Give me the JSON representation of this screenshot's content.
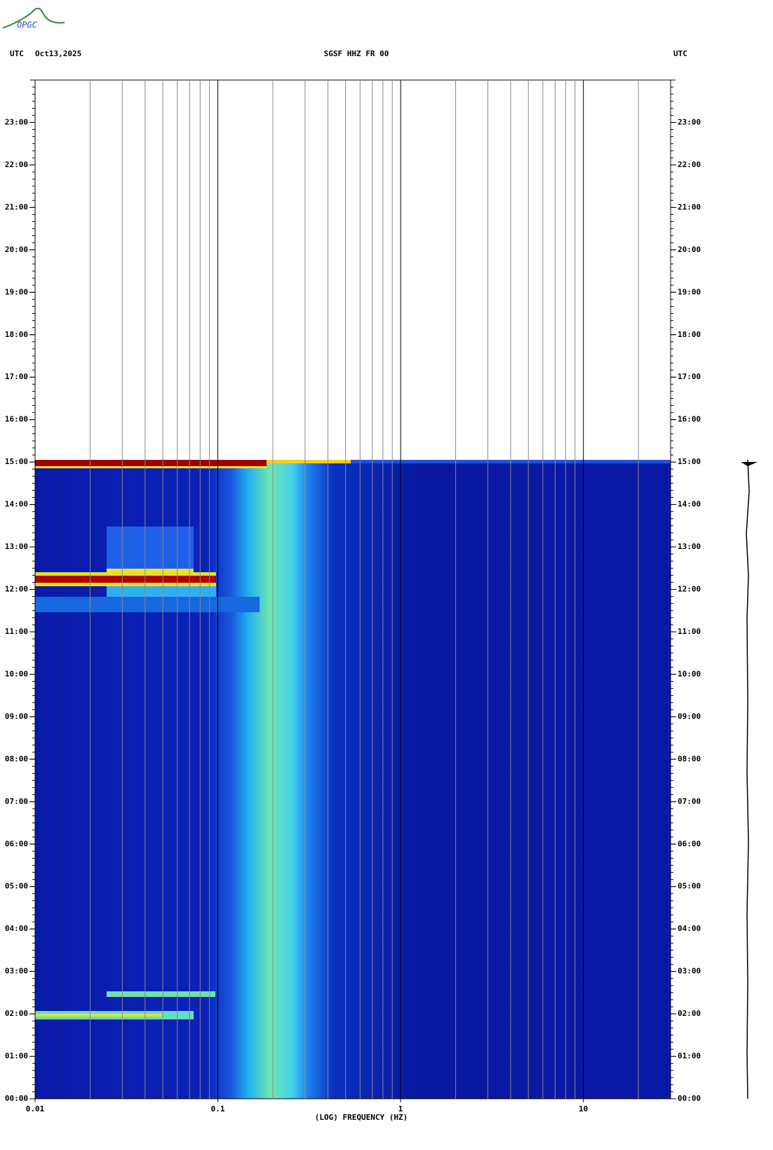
{
  "logo": "OPGC",
  "chart_data": {
    "type": "spectrogram",
    "title": "SGSF HHZ FR 00",
    "left_label": "UTC",
    "date": "Oct13,2025",
    "right_label": "UTC",
    "x_label": "(LOG) FREQUENCY (HZ)",
    "x_log": true,
    "xlim": [
      0.01,
      30
    ],
    "xticks": [
      0.01,
      0.1,
      1,
      10
    ],
    "x_minor_grid": [
      0.02,
      0.03,
      0.04,
      0.05,
      0.06,
      0.07,
      0.08,
      0.09,
      0.2,
      0.3,
      0.4,
      0.5,
      0.6,
      0.7,
      0.8,
      0.9,
      2,
      3,
      4,
      5,
      6,
      7,
      8,
      9,
      20
    ],
    "ylim": [
      0,
      24
    ],
    "yticks": [
      {
        "value": 0,
        "label": "00:00"
      },
      {
        "value": 1,
        "label": "01:00"
      },
      {
        "value": 2,
        "label": "02:00"
      },
      {
        "value": 3,
        "label": "03:00"
      },
      {
        "value": 4,
        "label": "04:00"
      },
      {
        "value": 5,
        "label": "05:00"
      },
      {
        "value": 6,
        "label": "06:00"
      },
      {
        "value": 7,
        "label": "07:00"
      },
      {
        "value": 8,
        "label": "08:00"
      },
      {
        "value": 9,
        "label": "09:00"
      },
      {
        "value": 10,
        "label": "10:00"
      },
      {
        "value": 11,
        "label": "11:00"
      },
      {
        "value": 12,
        "label": "12:00"
      },
      {
        "value": 13,
        "label": "13:00"
      },
      {
        "value": 14,
        "label": "14:00"
      },
      {
        "value": 15,
        "label": "15:00"
      },
      {
        "value": 16,
        "label": "16:00"
      },
      {
        "value": 17,
        "label": "17:00"
      },
      {
        "value": 18,
        "label": "18:00"
      },
      {
        "value": 19,
        "label": "19:00"
      },
      {
        "value": 20,
        "label": "20:00"
      },
      {
        "value": 21,
        "label": "21:00"
      },
      {
        "value": 22,
        "label": "22:00"
      },
      {
        "value": 23,
        "label": "23:00"
      }
    ]
  }
}
